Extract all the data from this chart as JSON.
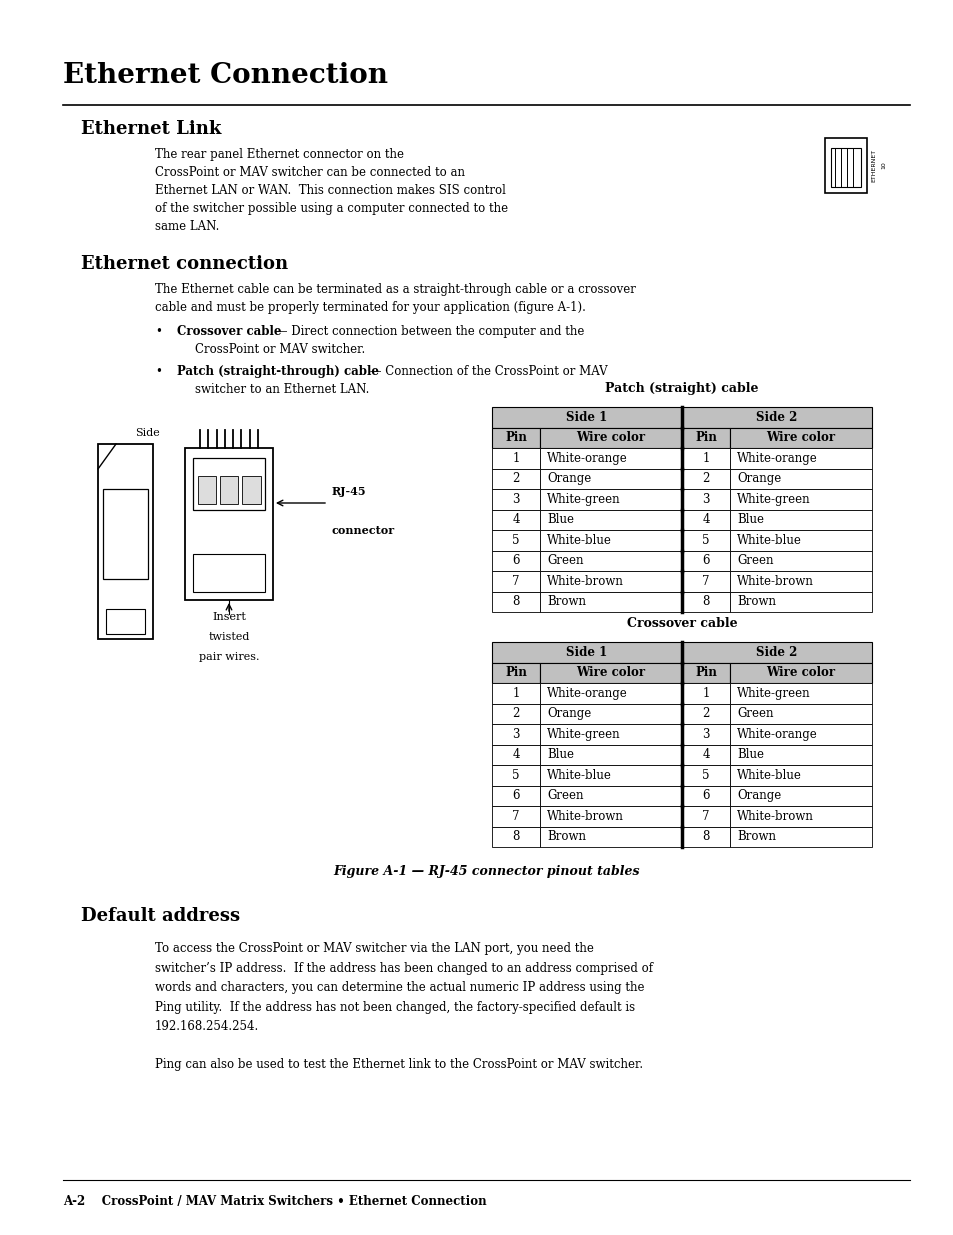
{
  "title": "Ethernet Connection",
  "section1_heading": "Ethernet Link",
  "section1_text_lines": [
    "The rear panel Ethernet connector on the",
    "CrossPoint or MAV switcher can be connected to an",
    "Ethernet LAN or WAN.  This connection makes SIS control",
    "of the switcher possible using a computer connected to the",
    "same LAN."
  ],
  "section2_heading": "Ethernet connection",
  "section2_text_lines": [
    "The Ethernet cable can be terminated as a straight-through cable or a crossover",
    "cable and must be properly terminated for your application (figure A-1)."
  ],
  "bullet1_bold": "Crossover cable",
  "bullet1_rest": " — Direct connection between the computer and the",
  "bullet1_line2": "CrossPoint or MAV switcher.",
  "bullet2_bold": "Patch (straight-through) cable",
  "bullet2_rest": " — Connection of the CrossPoint or MAV",
  "bullet2_line2": "switcher to an Ethernet LAN.",
  "patch_title": "Patch (straight) cable",
  "crossover_title": "Crossover cable",
  "patch_data": [
    [
      "1",
      "White-orange",
      "1",
      "White-orange"
    ],
    [
      "2",
      "Orange",
      "2",
      "Orange"
    ],
    [
      "3",
      "White-green",
      "3",
      "White-green"
    ],
    [
      "4",
      "Blue",
      "4",
      "Blue"
    ],
    [
      "5",
      "White-blue",
      "5",
      "White-blue"
    ],
    [
      "6",
      "Green",
      "6",
      "Green"
    ],
    [
      "7",
      "White-brown",
      "7",
      "White-brown"
    ],
    [
      "8",
      "Brown",
      "8",
      "Brown"
    ]
  ],
  "crossover_data": [
    [
      "1",
      "White-orange",
      "1",
      "White-green"
    ],
    [
      "2",
      "Orange",
      "2",
      "Green"
    ],
    [
      "3",
      "White-green",
      "3",
      "White-orange"
    ],
    [
      "4",
      "Blue",
      "4",
      "Blue"
    ],
    [
      "5",
      "White-blue",
      "5",
      "White-blue"
    ],
    [
      "6",
      "Green",
      "6",
      "Orange"
    ],
    [
      "7",
      "White-brown",
      "7",
      "White-brown"
    ],
    [
      "8",
      "Brown",
      "8",
      "Brown"
    ]
  ],
  "fig_caption": "Figure A-1 — RJ-45 connector pinout tables",
  "section3_heading": "Default address",
  "section3_text_lines": [
    "To access the CrossPoint or MAV switcher via the LAN port, you need the",
    "switcher’s IP address.  If the address has been changed to an address comprised of",
    "words and characters, you can determine the actual numeric IP address using the",
    "Ping utility.  If the address has not been changed, the factory-specified default is",
    "192.168.254.254."
  ],
  "section3_text2": "Ping can also be used to test the Ethernet link to the CrossPoint or MAV switcher.",
  "footer_text": "A-2    CrossPoint / MAV Matrix Switchers • Ethernet Connection",
  "bg_color": "#ffffff",
  "text_color": "#000000",
  "header_bg": "#c0c0c0"
}
